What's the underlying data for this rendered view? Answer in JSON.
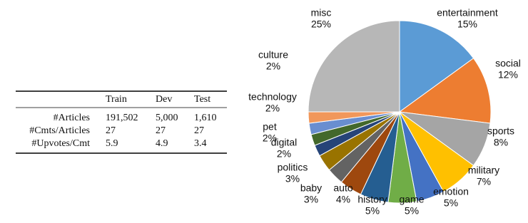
{
  "table": {
    "header": [
      "Train",
      "Dev",
      "Test"
    ],
    "rows": [
      {
        "label": "#Articles",
        "cells": [
          "191,502",
          "5,000",
          "1,610"
        ]
      },
      {
        "label": "#Cmts/Articles",
        "cells": [
          "27",
          "27",
          "27"
        ]
      },
      {
        "label": "#Upvotes/Cmt",
        "cells": [
          "5.9",
          "4.9",
          "3.4"
        ]
      }
    ]
  },
  "chart_data": {
    "type": "pie",
    "categories": [
      "entertainment",
      "social",
      "sports",
      "military",
      "emotion",
      "game",
      "history",
      "auto",
      "baby",
      "politics",
      "digital",
      "pet",
      "technology",
      "culture",
      "misc"
    ],
    "values": [
      15,
      12,
      8,
      7,
      5,
      5,
      5,
      4,
      3,
      3,
      2,
      2,
      2,
      2,
      25
    ],
    "value_labels": [
      "15%",
      "12%",
      "8%",
      "7%",
      "5%",
      "5%",
      "5%",
      "4%",
      "3%",
      "3%",
      "2%",
      "2%",
      "2%",
      "2%",
      "25%"
    ],
    "colors": [
      "#5b9bd5",
      "#ed7d31",
      "#a5a5a5",
      "#ffc000",
      "#4472c4",
      "#70ad47",
      "#255e91",
      "#9e480e",
      "#636363",
      "#997300",
      "#264478",
      "#43682b",
      "#698ed0",
      "#f1975a",
      "#b7b7b7"
    ]
  }
}
